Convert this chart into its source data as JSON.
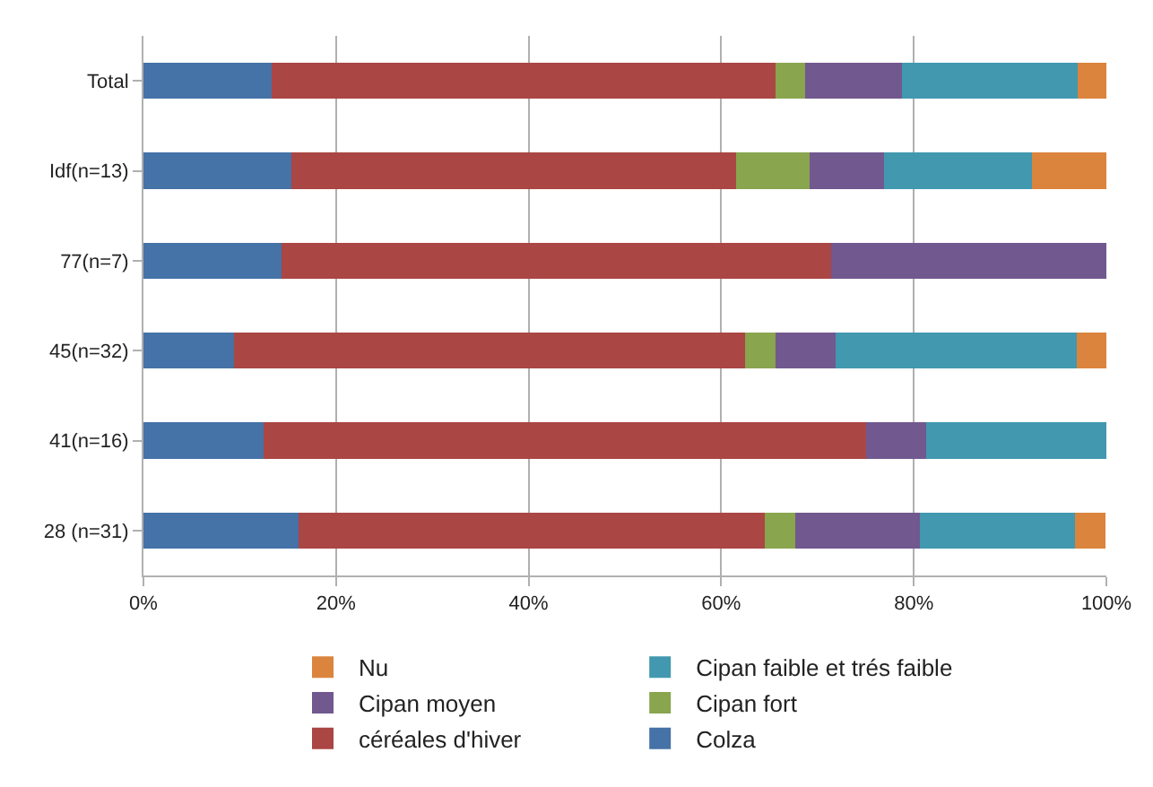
{
  "chart_data": {
    "type": "bar",
    "orientation": "horizontal",
    "stacked": true,
    "categories": [
      "Total",
      "Idf(n=13)",
      "77(n=7)",
      "45(n=32)",
      "41(n=16)",
      "28 (n=31)"
    ],
    "series": [
      {
        "name": "Colza",
        "color": "#4572a7",
        "values": [
          13.3,
          15.4,
          14.3,
          9.4,
          12.5,
          16.1
        ]
      },
      {
        "name": "céréales d'hiver",
        "color": "#aa4643",
        "values": [
          52.3,
          46.1,
          57.1,
          53.1,
          62.5,
          48.4
        ]
      },
      {
        "name": "Cipan fort",
        "color": "#89a54e",
        "values": [
          3.1,
          7.7,
          0,
          3.1,
          0,
          3.2
        ]
      },
      {
        "name": "Cipan moyen",
        "color": "#71588f",
        "values": [
          10.1,
          7.7,
          28.6,
          6.3,
          6.3,
          12.9
        ]
      },
      {
        "name": "Cipan faible et trés faible",
        "color": "#4198af",
        "values": [
          18.2,
          15.4,
          0,
          25.0,
          18.8,
          16.1
        ]
      },
      {
        "name": "Nu",
        "color": "#db843d",
        "values": [
          3.0,
          7.7,
          0,
          3.1,
          0,
          3.2
        ]
      }
    ],
    "xlim": [
      0,
      100
    ],
    "xticks": [
      {
        "value": 0,
        "label": "0%"
      },
      {
        "value": 20,
        "label": "20%"
      },
      {
        "value": 40,
        "label": "40%"
      },
      {
        "value": 60,
        "label": "60%"
      },
      {
        "value": 80,
        "label": "80%"
      },
      {
        "value": 100,
        "label": "100%"
      }
    ],
    "grid": "x",
    "legend": "bottom"
  }
}
